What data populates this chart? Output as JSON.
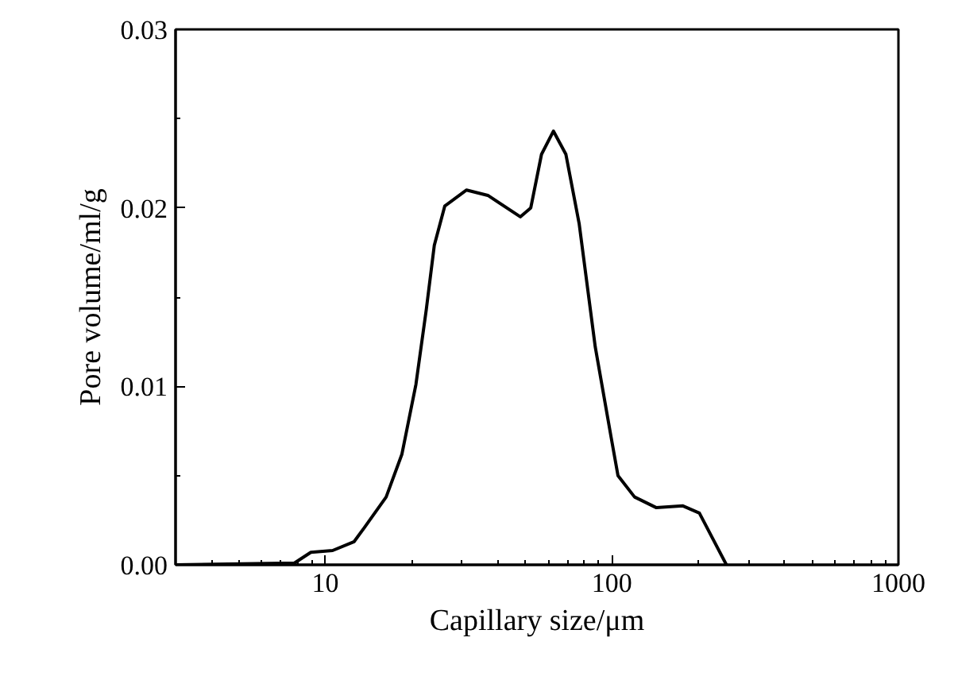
{
  "chart_data": {
    "type": "line",
    "xlabel": "Capillary size/μm",
    "ylabel": "Pore volume/ml/g",
    "log": "x",
    "xlim": [
      3,
      1000
    ],
    "ylim": [
      0,
      0.03
    ],
    "xticks": [
      10,
      100,
      1000
    ],
    "yticks": [
      "0.00",
      0.01,
      0.02,
      0.03
    ],
    "grid": false,
    "marker": "none",
    "line_style": "solid",
    "series": [
      {
        "color": "#000000",
        "x": [
          3.03,
          7.8,
          8.9,
          10.6,
          12.6,
          13.7,
          16.3,
          18.5,
          20.7,
          22.5,
          24.0,
          26.1,
          31.1,
          36.9,
          47.9,
          52.1,
          56.8,
          62.5,
          69.1,
          76.9,
          87.5,
          99.5,
          105,
          120,
          143,
          177,
          202,
          251
        ],
        "values": [
          0,
          0.0001,
          0.0007,
          0.0008,
          0.0013,
          0.0021,
          0.0038,
          0.0062,
          0.0101,
          0.0143,
          0.0179,
          0.0201,
          0.021,
          0.0207,
          0.0195,
          0.02,
          0.023,
          0.0243,
          0.023,
          0.0191,
          0.0122,
          0.0071,
          0.005,
          0.0038,
          0.0032,
          0.0033,
          0.0029,
          0
        ]
      }
    ]
  }
}
